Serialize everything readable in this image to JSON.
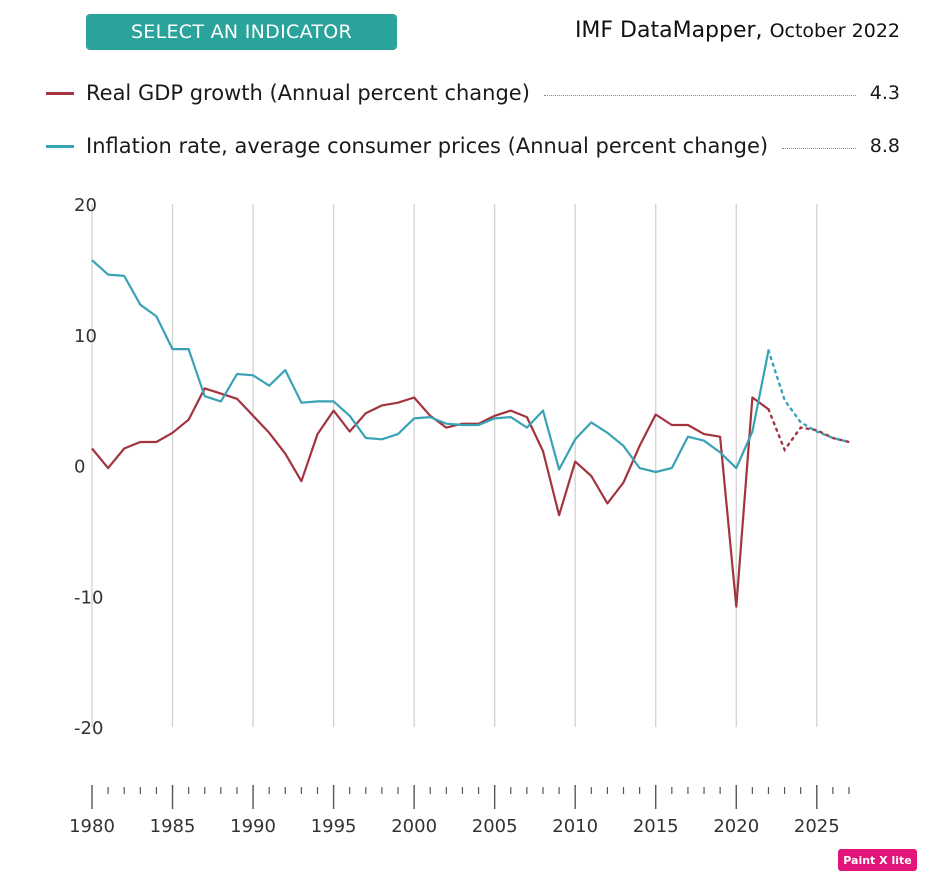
{
  "header": {
    "select_button": "SELECT AN INDICATOR",
    "brand": "IMF DataMapper,",
    "edition": "October 2022"
  },
  "badge": "Paint X lite",
  "chart_data": {
    "type": "line",
    "title": "",
    "xlabel": "",
    "ylabel": "",
    "ylim": [
      -20,
      20
    ],
    "xlim": [
      1980,
      2027
    ],
    "y_ticks": [
      "20",
      "10",
      "0",
      "-10",
      "-20"
    ],
    "x_ticks": [
      "1980",
      "1985",
      "1990",
      "1995",
      "2000",
      "2005",
      "2010",
      "2015",
      "2020",
      "2025"
    ],
    "grid": "vertical lines every 5 years",
    "legend_position": "top",
    "projection_from": 2022,
    "projection_style": "dotted",
    "series": [
      {
        "name": "Real GDP growth (Annual percent change)",
        "legend_value": "4.3",
        "color": "#a2343f",
        "x": [
          1980,
          1981,
          1982,
          1983,
          1984,
          1985,
          1986,
          1987,
          1988,
          1989,
          1990,
          1991,
          1992,
          1993,
          1994,
          1995,
          1996,
          1997,
          1998,
          1999,
          2000,
          2001,
          2002,
          2003,
          2004,
          2005,
          2006,
          2007,
          2008,
          2009,
          2010,
          2011,
          2012,
          2013,
          2014,
          2015,
          2016,
          2017,
          2018,
          2019,
          2020,
          2021,
          2022,
          2023,
          2024,
          2025,
          2026,
          2027
        ],
        "values": [
          1.3,
          -0.2,
          1.3,
          1.8,
          1.8,
          2.5,
          3.5,
          5.9,
          5.5,
          5.1,
          3.8,
          2.5,
          0.9,
          -1.2,
          2.4,
          4.2,
          2.6,
          4.0,
          4.6,
          4.8,
          5.2,
          3.8,
          2.9,
          3.2,
          3.2,
          3.8,
          4.2,
          3.7,
          1.1,
          -3.8,
          0.3,
          -0.8,
          -2.9,
          -1.3,
          1.5,
          3.9,
          3.1,
          3.1,
          2.4,
          2.2,
          -10.8,
          5.2,
          4.3,
          1.2,
          2.9,
          2.7,
          2.1,
          1.8
        ]
      },
      {
        "name": "Inflation rate, average consumer prices (Annual percent change)",
        "legend_value": "8.8",
        "color": "#3aa2b5",
        "x": [
          1980,
          1981,
          1982,
          1983,
          1984,
          1985,
          1986,
          1987,
          1988,
          1989,
          1990,
          1991,
          1992,
          1993,
          1994,
          1995,
          1996,
          1997,
          1998,
          1999,
          2000,
          2001,
          2002,
          2003,
          2004,
          2005,
          2006,
          2007,
          2008,
          2009,
          2010,
          2011,
          2012,
          2013,
          2014,
          2015,
          2016,
          2017,
          2018,
          2019,
          2020,
          2021,
          2022,
          2023,
          2024,
          2025,
          2026,
          2027
        ],
        "values": [
          15.7,
          14.6,
          14.5,
          12.3,
          11.4,
          8.9,
          8.9,
          5.3,
          4.9,
          7.0,
          6.9,
          6.1,
          7.3,
          4.8,
          4.9,
          4.9,
          3.8,
          2.1,
          2.0,
          2.4,
          3.6,
          3.7,
          3.2,
          3.1,
          3.1,
          3.6,
          3.7,
          2.9,
          4.2,
          -0.3,
          2.0,
          3.3,
          2.5,
          1.5,
          -0.2,
          -0.5,
          -0.2,
          2.2,
          1.9,
          1.0,
          -0.2,
          2.6,
          8.8,
          5.0,
          3.3,
          2.6,
          2.1,
          1.8
        ]
      }
    ]
  }
}
